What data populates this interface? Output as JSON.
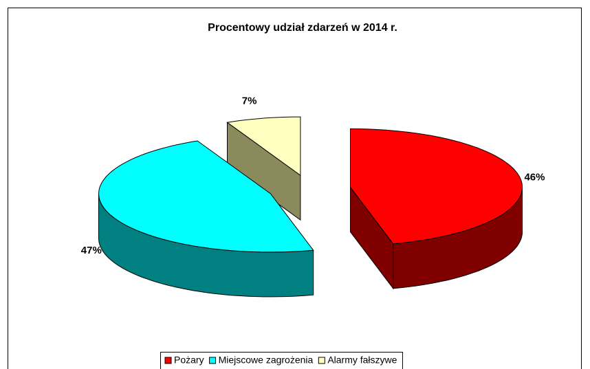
{
  "chart_data": {
    "type": "pie3d",
    "title": "Procentowy udział zdarzeń w 2014 r.",
    "categories": [
      "Pożary",
      "Miejscowe zagrożenia",
      "Alarmy fałszywe"
    ],
    "values": [
      46,
      47,
      7
    ],
    "value_labels": [
      "46%",
      "47%",
      "7%"
    ],
    "colors": [
      "#ff0000",
      "#00ffff",
      "#ffffc0"
    ],
    "side_colors": [
      "#800000",
      "#008080",
      "#8a8a5c"
    ],
    "legend": "bottom"
  }
}
